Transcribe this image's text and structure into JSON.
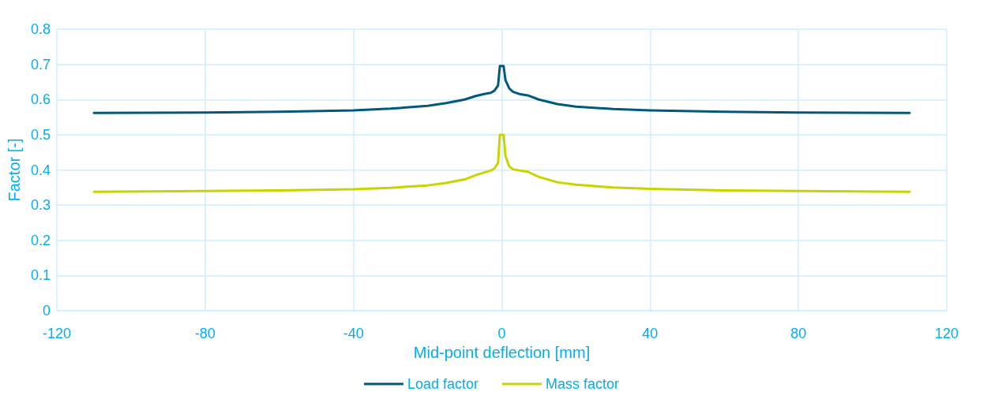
{
  "chart_data": {
    "type": "line",
    "xlabel": "Mid-point deflection [mm]",
    "ylabel": "Factor [-]",
    "xlim": [
      -120,
      120
    ],
    "xticks": [
      -120,
      -80,
      -40,
      0,
      40,
      80,
      120
    ],
    "ylim": [
      0,
      0.8
    ],
    "yticks": [
      0,
      0.1,
      0.2,
      0.3,
      0.4,
      0.5,
      0.6,
      0.7,
      0.8
    ],
    "grid": true,
    "legend": "bottom",
    "marker": "none",
    "line_style": "solid",
    "series": [
      {
        "name": "Load factor",
        "color": "#00587c",
        "x": [
          -110,
          -80,
          -60,
          -40,
          -30,
          -20,
          -15,
          -10,
          -7,
          -5,
          -3,
          -2,
          -1,
          -0.5,
          0.5,
          1,
          2,
          3,
          5,
          7,
          10,
          15,
          20,
          30,
          40,
          60,
          80,
          110
        ],
        "values": [
          0.562,
          0.563,
          0.565,
          0.569,
          0.574,
          0.582,
          0.59,
          0.6,
          0.61,
          0.615,
          0.619,
          0.625,
          0.64,
          0.695,
          0.695,
          0.655,
          0.632,
          0.622,
          0.615,
          0.612,
          0.6,
          0.587,
          0.58,
          0.573,
          0.569,
          0.565,
          0.563,
          0.562
        ]
      },
      {
        "name": "Mass factor",
        "color": "#c8d400",
        "x": [
          -110,
          -80,
          -60,
          -40,
          -30,
          -20,
          -15,
          -10,
          -7,
          -5,
          -3,
          -2,
          -1,
          -0.5,
          0.5,
          1,
          2,
          3,
          5,
          7,
          10,
          15,
          20,
          30,
          40,
          60,
          80,
          110
        ],
        "values": [
          0.338,
          0.34,
          0.342,
          0.345,
          0.349,
          0.356,
          0.363,
          0.373,
          0.385,
          0.392,
          0.398,
          0.404,
          0.42,
          0.5,
          0.5,
          0.44,
          0.41,
          0.402,
          0.398,
          0.395,
          0.38,
          0.365,
          0.358,
          0.35,
          0.346,
          0.342,
          0.34,
          0.338
        ]
      }
    ]
  }
}
